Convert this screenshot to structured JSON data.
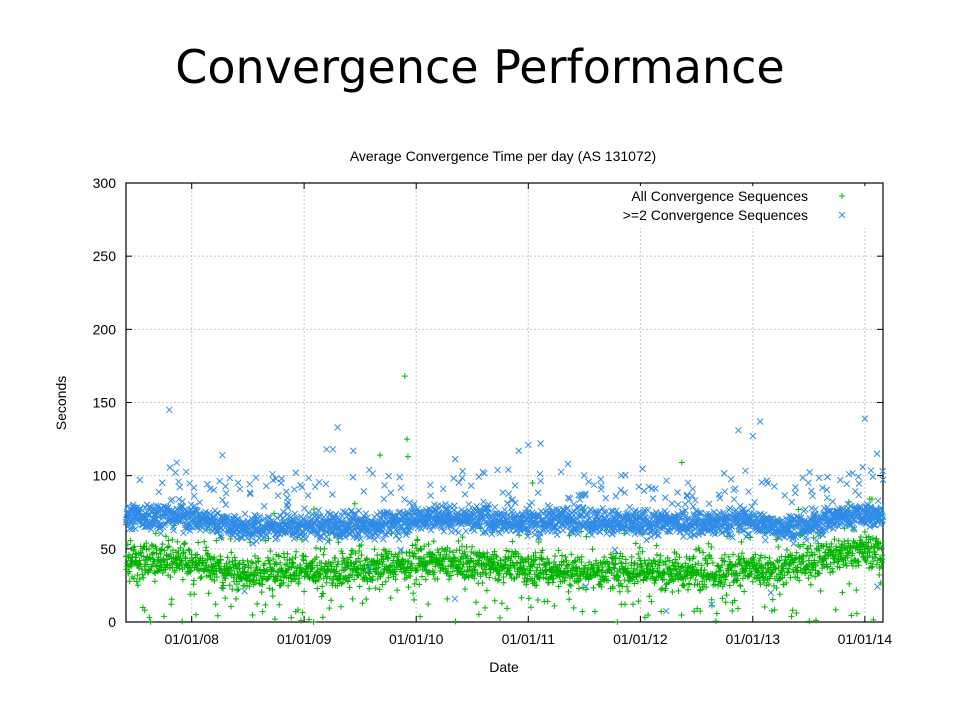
{
  "slide": {
    "title": "Convergence Performance"
  },
  "colors": {
    "all": "#00b400",
    "multi": "#2f8be6"
  },
  "chart_data": {
    "type": "scatter",
    "title": "Average Convergence Time per day (AS 131072)",
    "xlabel": "Date",
    "ylabel": "Seconds",
    "xlim": [
      "2007-06-01",
      "2014-03-01"
    ],
    "ylim": [
      0,
      300
    ],
    "x_ticks": [
      "01/01/08",
      "01/01/09",
      "01/01/10",
      "01/01/11",
      "01/01/12",
      "01/01/13",
      "01/01/14"
    ],
    "y_ticks": [
      0,
      50,
      100,
      150,
      200,
      250,
      300
    ],
    "grid": true,
    "legend_position": "top-right",
    "series": [
      {
        "name": "All Convergence Sequences",
        "marker": "+",
        "color": "#00b400",
        "baseline": [
          [
            "2007-06-01",
            41
          ],
          [
            "2007-12-01",
            43
          ],
          [
            "2008-03-01",
            36
          ],
          [
            "2008-07-01",
            33
          ],
          [
            "2008-12-01",
            36
          ],
          [
            "2009-04-01",
            35
          ],
          [
            "2009-10-01",
            39
          ],
          [
            "2010-02-01",
            41
          ],
          [
            "2010-07-01",
            39
          ],
          [
            "2010-12-01",
            38
          ],
          [
            "2011-05-01",
            35
          ],
          [
            "2011-10-01",
            34
          ],
          [
            "2012-03-01",
            36
          ],
          [
            "2012-08-01",
            34
          ],
          [
            "2012-12-01",
            36
          ],
          [
            "2013-03-01",
            34
          ],
          [
            "2013-07-01",
            41
          ],
          [
            "2013-10-01",
            46
          ],
          [
            "2014-01-01",
            50
          ],
          [
            "2014-03-01",
            47
          ]
        ],
        "outliers": [
          [
            "2009-11-25",
            168
          ],
          [
            "2009-12-02",
            125
          ],
          [
            "2009-12-05",
            113
          ],
          [
            "2009-09-05",
            114
          ],
          [
            "2012-05-15",
            109
          ],
          [
            "2011-01-15",
            95
          ],
          [
            "2008-01-15",
            5
          ],
          [
            "2009-02-01",
            0
          ],
          [
            "2008-11-20",
            3
          ],
          [
            "2010-06-01",
            58
          ],
          [
            "2013-11-20",
            65
          ],
          [
            "2007-08-01",
            8
          ]
        ]
      },
      {
        "name": ">=2 Convergence Sequences",
        "marker": "x",
        "color": "#2f8be6",
        "baseline": [
          [
            "2007-06-01",
            72
          ],
          [
            "2007-12-01",
            73
          ],
          [
            "2008-03-01",
            69
          ],
          [
            "2008-07-01",
            64
          ],
          [
            "2008-12-01",
            66
          ],
          [
            "2009-04-01",
            65
          ],
          [
            "2009-10-01",
            67
          ],
          [
            "2010-02-01",
            72
          ],
          [
            "2010-07-01",
            71
          ],
          [
            "2010-12-01",
            68
          ],
          [
            "2011-05-01",
            70
          ],
          [
            "2011-10-01",
            67
          ],
          [
            "2012-03-01",
            68
          ],
          [
            "2012-08-01",
            67
          ],
          [
            "2012-12-01",
            70
          ],
          [
            "2013-03-01",
            65
          ],
          [
            "2013-07-01",
            66
          ],
          [
            "2013-10-01",
            72
          ],
          [
            "2014-01-01",
            74
          ],
          [
            "2014-03-01",
            73
          ]
        ],
        "outliers": [
          [
            "2007-10-20",
            145
          ],
          [
            "2009-04-20",
            133
          ],
          [
            "2009-03-15",
            118
          ],
          [
            "2009-04-05",
            118
          ],
          [
            "2008-04-10",
            114
          ],
          [
            "2013-01-25",
            137
          ],
          [
            "2012-11-15",
            131
          ],
          [
            "2013-01-01",
            127
          ],
          [
            "2014-01-01",
            139
          ],
          [
            "2014-02-10",
            115
          ],
          [
            "2011-01-01",
            121
          ],
          [
            "2011-02-10",
            122
          ],
          [
            "2008-09-20",
            101
          ],
          [
            "2008-12-05",
            102
          ],
          [
            "2009-08-01",
            104
          ],
          [
            "2009-06-10",
            117
          ],
          [
            "2010-06-01",
            103
          ],
          [
            "2010-12-01",
            117
          ],
          [
            "2011-05-10",
            108
          ],
          [
            "2012-06-01",
            86
          ],
          [
            "2013-03-01",
            20
          ],
          [
            "2012-08-20",
            12
          ],
          [
            "2013-09-01",
            99
          ],
          [
            "2013-11-10",
            101
          ],
          [
            "2008-03-01",
            91
          ],
          [
            "2013-05-20",
            92
          ]
        ]
      }
    ]
  }
}
